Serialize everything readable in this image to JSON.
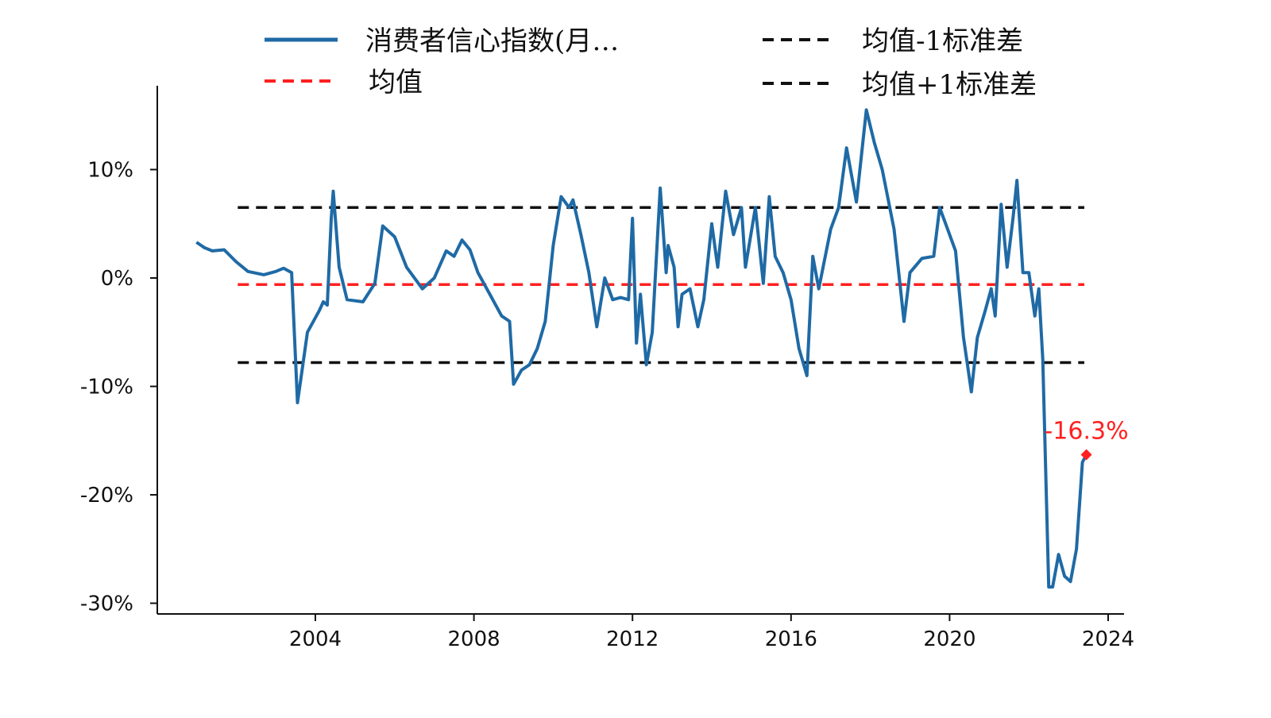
{
  "chart_data": {
    "type": "line",
    "title": "",
    "xlabel": "",
    "ylabel": "",
    "xlim": [
      2001.0,
      2024.4
    ],
    "ylim": [
      -30.5,
      17.5
    ],
    "x_ticks": [
      2004,
      2008,
      2012,
      2016,
      2020,
      2024
    ],
    "y_ticks": [
      {
        "value": 10,
        "label": "10%"
      },
      {
        "value": 0,
        "label": "0%"
      },
      {
        "value": -10,
        "label": "-10%"
      },
      {
        "value": -20,
        "label": "-20%"
      },
      {
        "value": -30,
        "label": "-30%"
      }
    ],
    "legend": {
      "position": "top",
      "entries": [
        {
          "label": "消费者信心指数(月…",
          "color": "#1f6aa5",
          "style": "solid"
        },
        {
          "label": "均值-1标准差",
          "color": "#111111",
          "style": "dashed"
        },
        {
          "label": "均值",
          "color": "#ff2020",
          "style": "dashed"
        },
        {
          "label": "均值+1标准差",
          "color": "#111111",
          "style": "dashed"
        }
      ]
    },
    "series": [
      {
        "name": "消费者信心指数(月…",
        "color": "#1f6aa5",
        "points": [
          [
            2001.0,
            3.3
          ],
          [
            2001.2,
            2.8
          ],
          [
            2001.4,
            2.5
          ],
          [
            2001.7,
            2.6
          ],
          [
            2002.0,
            1.5
          ],
          [
            2002.3,
            0.6
          ],
          [
            2002.7,
            0.3
          ],
          [
            2003.0,
            0.6
          ],
          [
            2003.2,
            0.9
          ],
          [
            2003.4,
            0.5
          ],
          [
            2003.55,
            -11.5
          ],
          [
            2003.8,
            -5.0
          ],
          [
            2004.1,
            -3.0
          ],
          [
            2004.2,
            -2.2
          ],
          [
            2004.3,
            -2.5
          ],
          [
            2004.4,
            5.5
          ],
          [
            2004.45,
            8.0
          ],
          [
            2004.6,
            1.0
          ],
          [
            2004.8,
            -2.0
          ],
          [
            2005.2,
            -2.2
          ],
          [
            2005.5,
            -0.5
          ],
          [
            2005.7,
            4.8
          ],
          [
            2006.0,
            3.8
          ],
          [
            2006.3,
            1.0
          ],
          [
            2006.7,
            -1.0
          ],
          [
            2007.0,
            0.0
          ],
          [
            2007.3,
            2.5
          ],
          [
            2007.5,
            2.0
          ],
          [
            2007.7,
            3.5
          ],
          [
            2007.9,
            2.6
          ],
          [
            2008.1,
            0.5
          ],
          [
            2008.4,
            -1.5
          ],
          [
            2008.7,
            -3.5
          ],
          [
            2008.9,
            -4.0
          ],
          [
            2009.0,
            -9.8
          ],
          [
            2009.2,
            -8.5
          ],
          [
            2009.4,
            -8.0
          ],
          [
            2009.6,
            -6.5
          ],
          [
            2009.8,
            -4.0
          ],
          [
            2010.0,
            3.0
          ],
          [
            2010.2,
            7.5
          ],
          [
            2010.4,
            6.5
          ],
          [
            2010.5,
            7.2
          ],
          [
            2010.7,
            4.0
          ],
          [
            2010.9,
            0.5
          ],
          [
            2011.1,
            -4.5
          ],
          [
            2011.3,
            0.0
          ],
          [
            2011.5,
            -2.0
          ],
          [
            2011.7,
            -1.8
          ],
          [
            2011.9,
            -2.0
          ],
          [
            2012.0,
            5.5
          ],
          [
            2012.1,
            -6.0
          ],
          [
            2012.2,
            -1.5
          ],
          [
            2012.35,
            -8.0
          ],
          [
            2012.5,
            -5.0
          ],
          [
            2012.7,
            8.3
          ],
          [
            2012.85,
            0.5
          ],
          [
            2012.9,
            3.0
          ],
          [
            2013.05,
            1.0
          ],
          [
            2013.15,
            -4.5
          ],
          [
            2013.25,
            -1.5
          ],
          [
            2013.45,
            -1.0
          ],
          [
            2013.65,
            -4.5
          ],
          [
            2013.8,
            -2.0
          ],
          [
            2014.0,
            5.0
          ],
          [
            2014.15,
            1.0
          ],
          [
            2014.35,
            8.0
          ],
          [
            2014.55,
            4.0
          ],
          [
            2014.75,
            6.5
          ],
          [
            2014.85,
            1.0
          ],
          [
            2015.1,
            6.5
          ],
          [
            2015.3,
            -0.5
          ],
          [
            2015.45,
            7.5
          ],
          [
            2015.6,
            2.0
          ],
          [
            2015.8,
            0.5
          ],
          [
            2016.0,
            -2.0
          ],
          [
            2016.2,
            -6.5
          ],
          [
            2016.4,
            -9.0
          ],
          [
            2016.55,
            2.0
          ],
          [
            2016.7,
            -1.0
          ],
          [
            2017.0,
            4.5
          ],
          [
            2017.2,
            6.5
          ],
          [
            2017.4,
            12.0
          ],
          [
            2017.65,
            7.0
          ],
          [
            2017.9,
            15.5
          ],
          [
            2018.1,
            12.5
          ],
          [
            2018.3,
            10.0
          ],
          [
            2018.6,
            4.5
          ],
          [
            2018.85,
            -4.0
          ],
          [
            2019.0,
            0.5
          ],
          [
            2019.3,
            1.8
          ],
          [
            2019.6,
            2.0
          ],
          [
            2019.75,
            6.5
          ],
          [
            2019.95,
            4.5
          ],
          [
            2020.15,
            2.5
          ],
          [
            2020.25,
            -1.5
          ],
          [
            2020.35,
            -5.5
          ],
          [
            2020.45,
            -8.0
          ],
          [
            2020.55,
            -10.5
          ],
          [
            2020.7,
            -5.5
          ],
          [
            2020.9,
            -3.0
          ],
          [
            2021.05,
            -1.0
          ],
          [
            2021.15,
            -3.5
          ],
          [
            2021.3,
            6.8
          ],
          [
            2021.45,
            1.0
          ],
          [
            2021.6,
            5.5
          ],
          [
            2021.7,
            9.0
          ],
          [
            2021.85,
            0.5
          ],
          [
            2022.0,
            0.5
          ],
          [
            2022.15,
            -3.5
          ],
          [
            2022.25,
            -1.0
          ],
          [
            2022.35,
            -7.5
          ],
          [
            2022.5,
            -28.5
          ],
          [
            2022.6,
            -28.5
          ],
          [
            2022.75,
            -25.5
          ],
          [
            2022.9,
            -27.5
          ],
          [
            2023.05,
            -28.0
          ],
          [
            2023.2,
            -25.0
          ],
          [
            2023.35,
            -17.0
          ],
          [
            2023.45,
            -16.3
          ]
        ]
      }
    ],
    "reference_lines": [
      {
        "name": "均值",
        "value": -0.6,
        "color": "#ff2020"
      },
      {
        "name": "均值+1标准差",
        "value": 6.5,
        "color": "#111111"
      },
      {
        "name": "均值-1标准差",
        "value": -7.8,
        "color": "#111111"
      }
    ],
    "reference_lines_x_range": [
      2001.0,
      2024.0
    ],
    "annotation": {
      "text": "-16.3%",
      "x": 2023.45,
      "y": -16.3,
      "color": "#ff2020"
    }
  }
}
